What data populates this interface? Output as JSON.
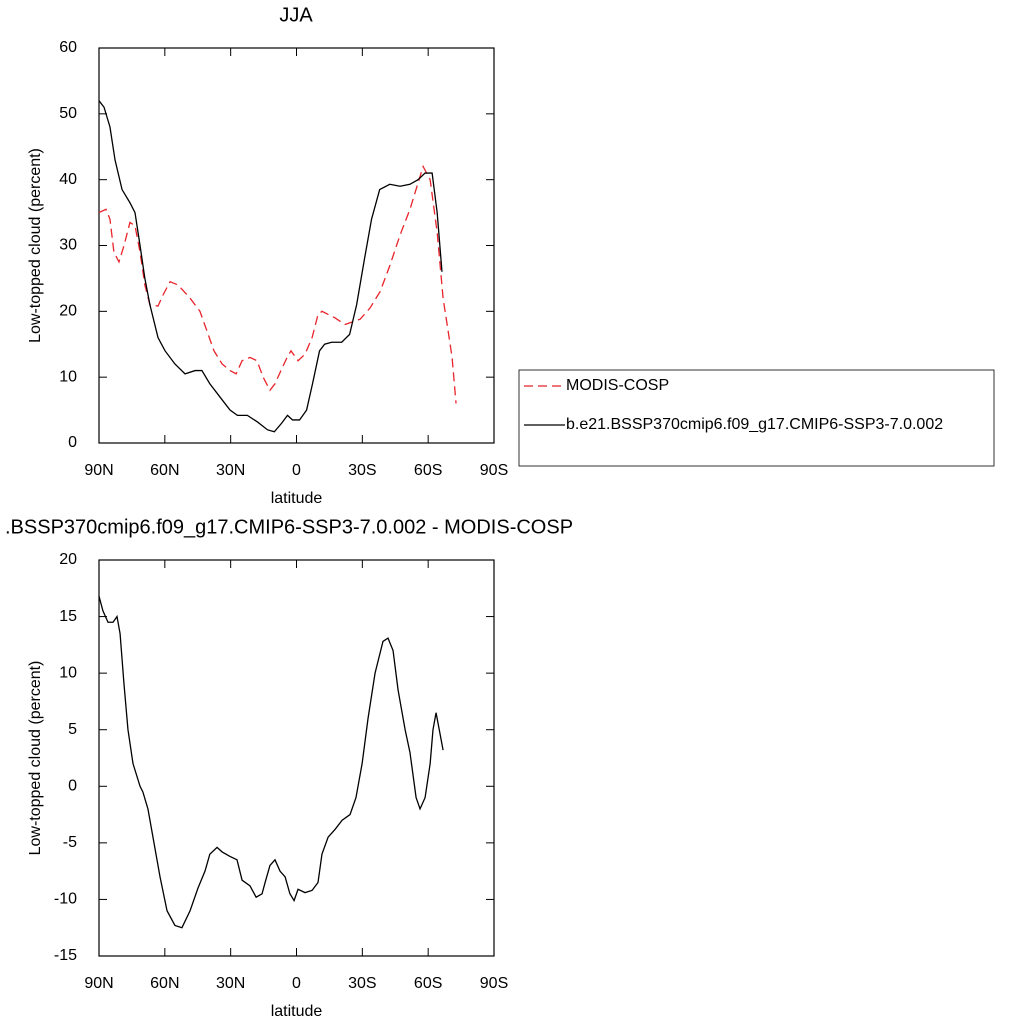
{
  "chart_data": [
    {
      "type": "line",
      "title": "JJA",
      "x_label": "latitude",
      "y_label": "Low-topped cloud (percent)",
      "xlim": [
        90,
        -90
      ],
      "ylim": [
        0,
        60
      ],
      "xticks": [
        {
          "value": 90,
          "label": "90N"
        },
        {
          "value": 60,
          "label": "60N"
        },
        {
          "value": 30,
          "label": "30N"
        },
        0,
        {
          "value": -30,
          "label": "30S"
        },
        {
          "value": -60,
          "label": "60S"
        },
        {
          "value": -90,
          "label": "90S"
        }
      ],
      "yticks": [
        0,
        10,
        20,
        30,
        40,
        50,
        60
      ],
      "legend": "right",
      "series": [
        {
          "name": "MODIS-COSP",
          "color": "#e8232a",
          "dash": true,
          "x": [
            90,
            86.8,
            85,
            83.2,
            80.9,
            78.6,
            75.9,
            73.6,
            71.3,
            69.1,
            66.8,
            63.1,
            60.8,
            57.6,
            54,
            48.5,
            44,
            40.8,
            37.6,
            33.9,
            30.3,
            27.5,
            24.8,
            21.2,
            18,
            15.2,
            12.1,
            9.8,
            7.1,
            4.3,
            2.5,
            -0.7,
            -3.9,
            -7.1,
            -9.8,
            -11.6,
            -17.6,
            -22.1,
            -29,
            -33.5,
            -38.1,
            -42.6,
            -47.2,
            -51.7,
            -54,
            -57.7,
            -60.9,
            -64.1,
            -66.8,
            -69.1,
            -70.9,
            -72.7
          ],
          "values": [
            35,
            35.5,
            34,
            29,
            27.5,
            30,
            33.5,
            33,
            29,
            24,
            21,
            20.8,
            22.5,
            24.5,
            24,
            22,
            20,
            17,
            14,
            12,
            11,
            10.5,
            12.5,
            13,
            12.5,
            10,
            8,
            9,
            11,
            13,
            14,
            12.5,
            13.5,
            16,
            19.5,
            20,
            19,
            18,
            18.8,
            20.5,
            23,
            27,
            31.6,
            35.5,
            38,
            42,
            40,
            32,
            22,
            17,
            13,
            6
          ]
        },
        {
          "name": "b.e21.BSSP370cmip6.f09_g17.CMIP6-SSP3-7.0.002",
          "color": "#000000",
          "dash": false,
          "x": [
            90,
            87.7,
            85,
            82.7,
            79.5,
            75.9,
            73.6,
            71.3,
            69.1,
            66.8,
            63.1,
            59.9,
            55.4,
            50.8,
            46.2,
            43.1,
            39.5,
            34.9,
            30.3,
            26.9,
            22.4,
            17.8,
            13.2,
            10.1,
            6.8,
            4.1,
            1.8,
            -1.4,
            -4.6,
            -7.3,
            -10.5,
            -12.8,
            -16,
            -20.6,
            -24.2,
            -27.4,
            -31,
            -34.2,
            -37.9,
            -42.5,
            -47.2,
            -51.7,
            -55.4,
            -58.6,
            -61.8,
            -64.1,
            -66.3
          ],
          "values": [
            52,
            51,
            48,
            43,
            38.5,
            36.5,
            35,
            30,
            25,
            21,
            16,
            14,
            12,
            10.5,
            11,
            11,
            9,
            7,
            5,
            4.2,
            4.2,
            3.2,
            2,
            1.7,
            3,
            4.2,
            3.5,
            3.5,
            5,
            9,
            14,
            15,
            15.3,
            15.3,
            16.5,
            21,
            28,
            34,
            38.5,
            39.3,
            39,
            39.3,
            40,
            41,
            41,
            35,
            26
          ]
        }
      ]
    },
    {
      "type": "line",
      "title": ".BSSP370cmip6.f09_g17.CMIP6-SSP3-7.0.002 - MODIS-COSP",
      "x_label": "latitude",
      "y_label": "Low-topped cloud (percent)",
      "xlim": [
        90,
        -90
      ],
      "ylim": [
        -15,
        20
      ],
      "xticks": [
        {
          "value": 90,
          "label": "90N"
        },
        {
          "value": 60,
          "label": "60N"
        },
        {
          "value": 30,
          "label": "30N"
        },
        0,
        {
          "value": -30,
          "label": "30S"
        },
        {
          "value": -60,
          "label": "60S"
        },
        {
          "value": -90,
          "label": "90S"
        }
      ],
      "yticks": [
        -15,
        -10,
        -5,
        0,
        5,
        10,
        15,
        20
      ],
      "series": [
        {
          "color": "#000000",
          "dash": false,
          "x": [
            90,
            88.2,
            85.9,
            83.6,
            81.8,
            80.4,
            78.6,
            76.8,
            74.5,
            71.3,
            70,
            67.7,
            65.4,
            62.2,
            59,
            55.4,
            52.2,
            48.5,
            44.9,
            41.7,
            39.5,
            36.2,
            33.9,
            30.3,
            27.1,
            24.8,
            21.2,
            18.4,
            15.7,
            14.3,
            12.1,
            9.8,
            7.5,
            5.2,
            3,
            1.1,
            -0.7,
            -3.9,
            -7.1,
            -9.8,
            -11.6,
            -14.4,
            -17.6,
            -20.8,
            -24.4,
            -27.1,
            -29.9,
            -32.6,
            -35.8,
            -39.4,
            -41.7,
            -44,
            -46.3,
            -49.5,
            -51.7,
            -54.5,
            -56.3,
            -58.6,
            -60.9,
            -62.2,
            -63.6,
            -66.8
          ],
          "values": [
            16.8,
            15.5,
            14.5,
            14.5,
            15,
            13.5,
            9,
            5,
            2,
            0,
            -0.5,
            -2,
            -4.5,
            -8,
            -11,
            -12.3,
            -12.5,
            -11,
            -9,
            -7.5,
            -6,
            -5.4,
            -5.8,
            -6.2,
            -6.5,
            -8.3,
            -8.8,
            -9.8,
            -9.5,
            -8.5,
            -7,
            -6.5,
            -7.5,
            -8,
            -9.5,
            -10.1,
            -9.1,
            -9.4,
            -9.2,
            -8.5,
            -6,
            -4.5,
            -3.8,
            -3,
            -2.5,
            -1,
            2,
            6,
            10,
            12.8,
            13.1,
            12,
            8.5,
            5,
            3,
            -1,
            -2,
            -1,
            2,
            5,
            6.5,
            3.2
          ]
        }
      ]
    }
  ]
}
